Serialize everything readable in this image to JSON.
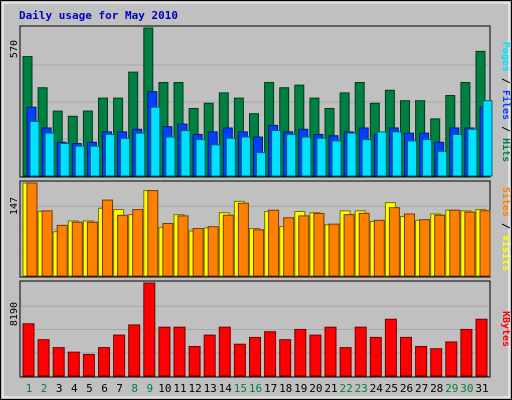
{
  "chart_data": {
    "type": "bar",
    "title": "Daily usage for May 2010",
    "categories": [
      "1",
      "2",
      "3",
      "4",
      "5",
      "6",
      "7",
      "8",
      "9",
      "10",
      "11",
      "12",
      "13",
      "14",
      "15",
      "16",
      "17",
      "18",
      "19",
      "20",
      "21",
      "22",
      "23",
      "24",
      "25",
      "26",
      "27",
      "28",
      "29",
      "30",
      "31"
    ],
    "weekend_days": [
      "1",
      "2",
      "8",
      "9",
      "15",
      "16",
      "22",
      "23",
      "29",
      "30"
    ],
    "panels": [
      {
        "name": "Pages / Files / Hits",
        "ymax_label": "570",
        "ylim": [
          0,
          570
        ],
        "ylabel_parts": [
          "Pages",
          "Files",
          "Hits"
        ],
        "series": [
          {
            "name": "Hits",
            "color": "#008040",
            "values": [
              460,
              340,
              250,
              230,
              250,
              300,
              300,
              400,
              570,
              360,
              360,
              260,
              280,
              320,
              300,
              240,
              360,
              340,
              350,
              300,
              260,
              320,
              360,
              280,
              330,
              290,
              290,
              220,
              310,
              360,
              480
            ]
          },
          {
            "name": "Files",
            "color": "#0040ff",
            "values": [
              265,
              185,
              130,
              125,
              130,
              170,
              170,
              180,
              325,
              190,
              200,
              160,
              170,
              185,
              170,
              150,
              195,
              170,
              180,
              160,
              155,
              170,
              185,
              160,
              185,
              165,
              165,
              130,
              185,
              185,
              265
            ]
          },
          {
            "name": "Pages",
            "color": "#00e0ff",
            "values": [
              210,
              165,
              125,
              115,
              115,
              160,
              145,
              165,
              265,
              150,
              175,
              140,
              120,
              145,
              150,
              90,
              175,
              160,
              150,
              145,
              135,
              165,
              140,
              170,
              170,
              135,
              140,
              95,
              160,
              180,
              290
            ]
          }
        ]
      },
      {
        "name": "Sites / Visits",
        "ymax_label": "147",
        "ylim": [
          0,
          147
        ],
        "ylabel_parts": [
          "Sites",
          "Visits"
        ],
        "series": [
          {
            "name": "Visits",
            "color": "#ffff00",
            "values": [
              147,
              102,
              70,
              87,
              87,
              107,
              105,
              97,
              135,
              77,
              97,
              71,
              76,
              100,
              118,
              75,
              102,
              78,
              102,
              100,
              81,
              103,
              103,
              86,
              116,
              94,
              88,
              98,
              104,
              103,
              105
            ]
          },
          {
            "name": "Sites",
            "color": "#ff8000",
            "values": [
              147,
              103,
              80,
              85,
              85,
              120,
              96,
              105,
              135,
              83,
              95,
              75,
              78,
              96,
              115,
              73,
              104,
              92,
              95,
              99,
              82,
              97,
              99,
              88,
              108,
              98,
              89,
              96,
              104,
              101,
              103
            ]
          }
        ]
      },
      {
        "name": "KBytes",
        "ymax_label": "8190",
        "ylim": [
          0,
          8190
        ],
        "ylabel_parts": [
          "KBytes"
        ],
        "series": [
          {
            "name": "KBytes",
            "color": "#ff0000",
            "values": [
              4600,
              3200,
              2500,
              2100,
              1900,
              2500,
              3600,
              4500,
              8190,
              4300,
              4300,
              2600,
              3600,
              4300,
              2800,
              3400,
              3900,
              3200,
              4100,
              3600,
              4300,
              2500,
              4300,
              3400,
              5000,
              3400,
              2600,
              2400,
              3000,
              4100,
              5000
            ]
          }
        ]
      }
    ]
  }
}
